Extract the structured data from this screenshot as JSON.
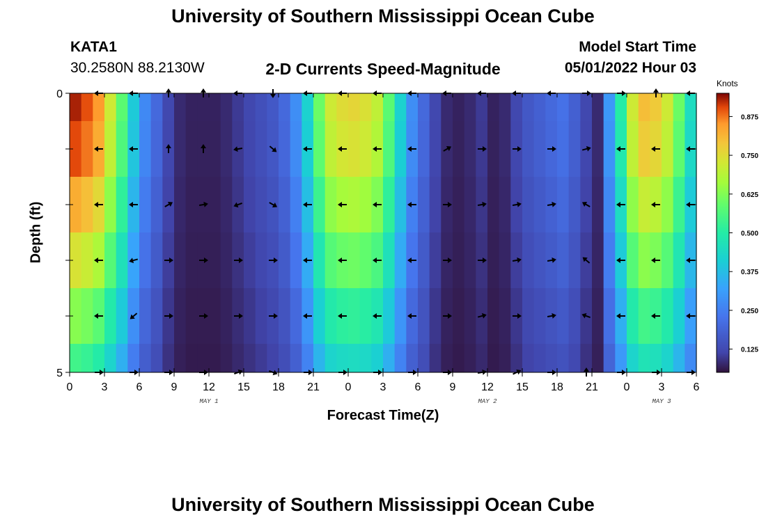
{
  "header": {
    "title": "University of Southern Mississippi Ocean Cube",
    "station": "KATA1",
    "coords": "30.2580N  88.2130W",
    "subtitle": "2-D Currents Speed-Magnitude",
    "model_start_label": "Model Start Time",
    "model_start_value": "05/01/2022 Hour 03"
  },
  "footer": {
    "title": "University of Southern Mississippi Ocean Cube"
  },
  "colors": {
    "background": "#ffffff",
    "arrow": "#000000"
  },
  "chart_data": {
    "type": "heatmap",
    "title": "2-D Currents Speed-Magnitude",
    "xlabel": "Forecast Time(Z)",
    "ylabel": "Depth (ft)",
    "xlim": [
      0,
      54
    ],
    "ylim": [
      0,
      5
    ],
    "x_ticks": [
      0,
      3,
      6,
      9,
      12,
      15,
      18,
      21,
      24,
      27,
      30,
      33,
      36,
      39,
      42,
      45,
      48,
      51,
      54
    ],
    "x_tick_labels": [
      "0",
      "3",
      "6",
      "9",
      "12",
      "15",
      "18",
      "21",
      "0",
      "3",
      "6",
      "9",
      "12",
      "15",
      "18",
      "21",
      "0",
      "3",
      "6"
    ],
    "y_tick_labels": [
      "0",
      "",
      "",
      "",
      "",
      "5"
    ],
    "day_labels": [
      {
        "hour": 12,
        "text": "MAY 1"
      },
      {
        "hour": 36,
        "text": "MAY 2"
      },
      {
        "hour": 51,
        "text": "MAY 3"
      }
    ],
    "colorbar": {
      "title": "Knots",
      "min": 0.05,
      "max": 0.95,
      "ticks": [
        "0.875",
        "0.750",
        "0.625",
        "0.500",
        "0.375",
        "0.250",
        "0.125"
      ],
      "tick_values": [
        0.875,
        0.75,
        0.625,
        0.5,
        0.375,
        0.25,
        0.125
      ]
    },
    "depth_rows": [
      0,
      1,
      2,
      3,
      4,
      5
    ],
    "time_hours": [
      0.5,
      1.5,
      2.5,
      3.5,
      4.5,
      5.5,
      6.5,
      7.5,
      8.5,
      9.5,
      10.5,
      11.5,
      12.5,
      13.5,
      14.5,
      15.5,
      16.5,
      17.5,
      18.5,
      19.5,
      20.5,
      21.5,
      22.5,
      23.5,
      24.5,
      25.5,
      26.5,
      27.5,
      28.5,
      29.5,
      30.5,
      31.5,
      32.5,
      33.5,
      34.5,
      35.5,
      36.5,
      37.5,
      38.5,
      39.5,
      40.5,
      41.5,
      42.5,
      43.5,
      44.5,
      45.5,
      46.5,
      47.5,
      48.5,
      49.5,
      50.5,
      51.5,
      52.5,
      53.5
    ],
    "speed_profile_knots": [
      0.93,
      0.9,
      0.85,
      0.72,
      0.58,
      0.4,
      0.27,
      0.2,
      0.12,
      0.08,
      0.07,
      0.07,
      0.07,
      0.08,
      0.1,
      0.12,
      0.14,
      0.16,
      0.2,
      0.28,
      0.42,
      0.6,
      0.72,
      0.75,
      0.76,
      0.74,
      0.7,
      0.58,
      0.42,
      0.28,
      0.2,
      0.12,
      0.08,
      0.07,
      0.08,
      0.1,
      0.07,
      0.08,
      0.12,
      0.16,
      0.18,
      0.2,
      0.22,
      0.18,
      0.12,
      0.08,
      0.3,
      0.5,
      0.72,
      0.8,
      0.78,
      0.72,
      0.6,
      0.45
    ],
    "depth_factors": [
      1.0,
      0.97,
      0.88,
      0.78,
      0.66,
      0.56
    ],
    "arrow_hours": [
      3,
      6,
      9,
      12,
      15,
      18,
      21,
      24,
      27,
      30,
      33,
      36,
      39,
      42,
      45,
      48,
      51,
      54
    ],
    "arrow_directions_deg": [
      [
        180,
        180,
        90,
        90,
        180,
        270,
        180,
        180,
        180,
        180,
        180,
        180,
        180,
        180,
        0,
        0,
        90,
        180
      ],
      [
        180,
        180,
        90,
        90,
        190,
        320,
        180,
        180,
        180,
        180,
        30,
        0,
        0,
        0,
        15,
        180,
        180,
        180
      ],
      [
        180,
        180,
        30,
        10,
        200,
        330,
        180,
        180,
        180,
        180,
        0,
        10,
        10,
        10,
        150,
        180,
        180,
        180
      ],
      [
        180,
        195,
        0,
        0,
        0,
        0,
        180,
        180,
        180,
        180,
        0,
        0,
        10,
        10,
        140,
        180,
        180,
        180
      ],
      [
        180,
        220,
        0,
        0,
        0,
        0,
        180,
        180,
        180,
        180,
        0,
        15,
        0,
        10,
        160,
        180,
        180,
        180
      ],
      [
        0,
        0,
        0,
        0,
        20,
        340,
        0,
        0,
        0,
        0,
        0,
        10,
        25,
        0,
        90,
        0,
        0,
        0
      ]
    ]
  }
}
